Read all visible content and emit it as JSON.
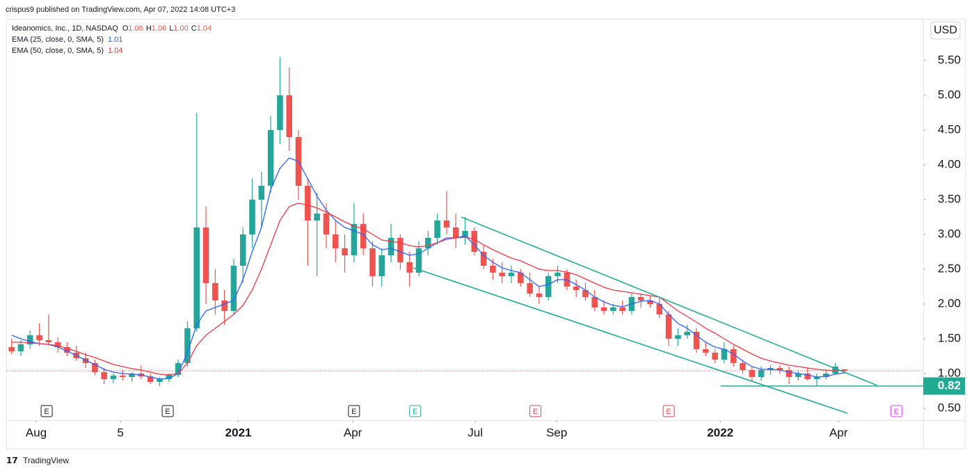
{
  "header": {
    "published": "crispus9 published on TradingView.com, Apr 07, 2022 14:08 UTC+3"
  },
  "footer": {
    "brand": "TradingView"
  },
  "chart_data": {
    "type": "candlestick",
    "title": "Ideanomics, Inc., 1D, NASDAQ",
    "ohlc_legend": [
      {
        "key": "O",
        "value": "1.06"
      },
      {
        "key": "H",
        "value": "1.06"
      },
      {
        "key": "L",
        "value": "1.00"
      },
      {
        "key": "C",
        "value": "1.04"
      }
    ],
    "currency": "USD",
    "up_color": "#26a69a",
    "down_color": "#ef5350",
    "categories": [
      null,
      null,
      null,
      null,
      null,
      null,
      null,
      null,
      null,
      null,
      null,
      null,
      null,
      null,
      null,
      null,
      null,
      null,
      null,
      null,
      null,
      null,
      null,
      null,
      null,
      null,
      null,
      null,
      null,
      null,
      null,
      null,
      null,
      null,
      null,
      null,
      null,
      null,
      null,
      null,
      null,
      null,
      null,
      null,
      null,
      null,
      null,
      null,
      null,
      null,
      null,
      null,
      null,
      null,
      null,
      null,
      null,
      null,
      null,
      null,
      null,
      null,
      null,
      null,
      null,
      null,
      null,
      null,
      null,
      null,
      null,
      null,
      null,
      null,
      null,
      null,
      null,
      null,
      null,
      null,
      null,
      null,
      null,
      null,
      null,
      null,
      null,
      null,
      null,
      null,
      null
    ],
    "open": [
      1.38,
      1.32,
      1.42,
      1.55,
      1.48,
      1.45,
      1.38,
      1.3,
      1.22,
      1.15,
      1.02,
      0.92,
      0.97,
      0.95,
      1.0,
      0.96,
      0.88,
      0.92,
      0.98,
      1.15,
      1.65,
      3.1,
      2.3,
      2.05,
      1.9,
      2.55,
      3.0,
      3.5,
      3.7,
      4.5,
      5.0,
      4.4,
      3.7,
      3.2,
      3.3,
      3.0,
      2.8,
      2.7,
      3.15,
      2.8,
      2.4,
      2.7,
      2.95,
      2.6,
      2.45,
      2.8,
      2.95,
      3.2,
      3.1,
      2.95,
      3.05,
      2.75,
      2.55,
      2.45,
      2.4,
      2.45,
      2.3,
      2.15,
      2.1,
      2.4,
      2.45,
      2.25,
      2.2,
      2.1,
      1.95,
      1.9,
      1.95,
      1.9,
      2.1,
      2.05,
      2.0,
      1.85,
      1.5,
      1.55,
      1.6,
      1.35,
      1.3,
      1.2,
      1.35,
      1.15,
      1.05,
      0.95,
      1.05,
      1.08,
      1.05,
      0.95,
      1.0,
      0.92,
      0.95,
      1.0,
      1.06
    ],
    "high": [
      1.5,
      1.48,
      1.62,
      1.72,
      1.85,
      1.52,
      1.45,
      1.4,
      1.3,
      1.2,
      1.08,
      1.0,
      1.05,
      1.02,
      1.12,
      1.0,
      0.95,
      1.0,
      1.2,
      1.75,
      4.75,
      3.4,
      2.5,
      2.2,
      2.65,
      3.1,
      3.8,
      3.9,
      4.7,
      5.55,
      5.4,
      4.5,
      3.8,
      3.6,
      3.45,
      3.2,
      3.0,
      3.45,
      3.3,
      2.9,
      2.8,
      3.15,
      3.0,
      2.75,
      2.9,
      3.05,
      3.3,
      3.62,
      3.3,
      3.25,
      3.1,
      2.85,
      2.65,
      2.6,
      2.55,
      2.5,
      2.45,
      2.25,
      2.45,
      2.55,
      2.5,
      2.35,
      2.3,
      2.2,
      2.05,
      2.0,
      2.05,
      2.15,
      2.15,
      2.12,
      2.1,
      1.9,
      1.65,
      1.7,
      1.65,
      1.45,
      1.35,
      1.45,
      1.4,
      1.2,
      1.1,
      1.1,
      1.12,
      1.12,
      1.1,
      1.05,
      1.08,
      1.0,
      1.05,
      1.15,
      1.06
    ],
    "low": [
      1.28,
      1.25,
      1.36,
      1.4,
      1.4,
      1.3,
      1.25,
      1.18,
      1.08,
      0.98,
      0.85,
      0.86,
      0.9,
      0.88,
      0.92,
      0.85,
      0.82,
      0.88,
      0.95,
      1.1,
      1.6,
      2.0,
      1.85,
      1.7,
      1.85,
      2.3,
      2.8,
      3.1,
      3.6,
      4.3,
      4.2,
      3.5,
      2.55,
      2.4,
      2.8,
      2.6,
      2.45,
      2.6,
      2.7,
      2.25,
      2.25,
      2.6,
      2.5,
      2.25,
      2.4,
      2.7,
      2.85,
      3.0,
      2.8,
      2.85,
      2.7,
      2.5,
      2.35,
      2.3,
      2.3,
      2.25,
      2.1,
      2.0,
      2.05,
      2.3,
      2.2,
      2.1,
      2.05,
      1.9,
      1.85,
      1.85,
      1.85,
      1.85,
      1.95,
      1.95,
      1.8,
      1.4,
      1.4,
      1.5,
      1.3,
      1.25,
      1.15,
      1.15,
      1.1,
      1.0,
      0.9,
      0.9,
      0.98,
      1.0,
      0.85,
      0.9,
      0.9,
      0.82,
      0.92,
      0.98,
      1.0
    ],
    "close": [
      1.32,
      1.42,
      1.55,
      1.48,
      1.45,
      1.38,
      1.3,
      1.22,
      1.15,
      1.02,
      0.92,
      0.97,
      0.95,
      1.0,
      0.96,
      0.88,
      0.92,
      0.98,
      1.15,
      1.65,
      3.1,
      2.3,
      2.05,
      1.9,
      2.55,
      3.0,
      3.5,
      3.7,
      4.5,
      5.0,
      4.4,
      3.7,
      3.2,
      3.3,
      3.0,
      2.8,
      2.7,
      3.15,
      2.8,
      2.4,
      2.7,
      2.95,
      2.6,
      2.45,
      2.8,
      2.95,
      3.2,
      3.1,
      2.95,
      3.05,
      2.75,
      2.55,
      2.45,
      2.4,
      2.45,
      2.3,
      2.15,
      2.1,
      2.4,
      2.45,
      2.25,
      2.2,
      2.1,
      1.95,
      1.9,
      1.95,
      1.9,
      2.1,
      2.05,
      2.0,
      1.85,
      1.5,
      1.55,
      1.6,
      1.35,
      1.3,
      1.2,
      1.35,
      1.15,
      1.05,
      0.95,
      1.05,
      1.08,
      1.05,
      0.95,
      1.0,
      0.92,
      0.95,
      1.0,
      1.1,
      1.04
    ],
    "series": [
      {
        "name": "EMA (25, close, 0, SMA, 5)",
        "value_label": "1.01",
        "color": "#2962ff",
        "values": [
          1.55,
          1.5,
          1.46,
          1.43,
          1.42,
          1.38,
          1.32,
          1.26,
          1.19,
          1.13,
          1.06,
          1.02,
          1.0,
          0.99,
          0.98,
          0.95,
          0.92,
          0.93,
          1.0,
          1.3,
          1.7,
          1.9,
          1.95,
          2.0,
          2.05,
          2.35,
          2.75,
          3.1,
          3.65,
          3.95,
          4.1,
          4.05,
          3.8,
          3.55,
          3.35,
          3.2,
          3.1,
          3.05,
          3.0,
          2.85,
          2.78,
          2.8,
          2.75,
          2.7,
          2.72,
          2.8,
          2.88,
          2.95,
          2.95,
          2.98,
          2.85,
          2.7,
          2.6,
          2.52,
          2.48,
          2.45,
          2.35,
          2.25,
          2.28,
          2.35,
          2.35,
          2.28,
          2.2,
          2.1,
          2.03,
          1.98,
          1.96,
          2.0,
          2.04,
          2.05,
          2.0,
          1.85,
          1.72,
          1.65,
          1.55,
          1.45,
          1.38,
          1.35,
          1.28,
          1.18,
          1.1,
          1.06,
          1.06,
          1.05,
          1.02,
          1.0,
          0.98,
          0.95,
          0.96,
          0.99,
          1.01
        ]
      },
      {
        "name": "EMA (50, close, 0, SMA, 5)",
        "value_label": "1.04",
        "color": "#f23645",
        "values": [
          1.45,
          1.45,
          1.44,
          1.43,
          1.42,
          1.4,
          1.36,
          1.32,
          1.27,
          1.23,
          1.18,
          1.13,
          1.1,
          1.07,
          1.05,
          1.02,
          0.99,
          0.98,
          1.0,
          1.15,
          1.4,
          1.55,
          1.65,
          1.75,
          1.85,
          1.98,
          2.2,
          2.5,
          2.85,
          3.2,
          3.4,
          3.45,
          3.42,
          3.38,
          3.32,
          3.25,
          3.18,
          3.12,
          3.08,
          3.0,
          2.92,
          2.9,
          2.88,
          2.84,
          2.82,
          2.84,
          2.88,
          2.93,
          2.95,
          2.96,
          2.93,
          2.85,
          2.78,
          2.72,
          2.66,
          2.62,
          2.56,
          2.5,
          2.48,
          2.48,
          2.46,
          2.42,
          2.36,
          2.3,
          2.24,
          2.2,
          2.18,
          2.16,
          2.14,
          2.12,
          2.1,
          2.0,
          1.9,
          1.82,
          1.74,
          1.65,
          1.58,
          1.5,
          1.42,
          1.35,
          1.28,
          1.22,
          1.18,
          1.15,
          1.12,
          1.1,
          1.08,
          1.06,
          1.05,
          1.04,
          1.04
        ]
      }
    ],
    "xlim": [
      -0.5,
      98.5
    ],
    "xticks": [
      {
        "value": 2.66,
        "label": "Aug"
      },
      {
        "value": 11.76,
        "label": "5"
      },
      {
        "value": 24.5,
        "label": "2021"
      },
      {
        "value": 36.87,
        "label": "Apr"
      },
      {
        "value": 50.1,
        "label": "Jul"
      },
      {
        "value": 58.9,
        "label": "Sep"
      },
      {
        "value": 76.57,
        "label": "2022"
      },
      {
        "value": 89.35,
        "label": "Apr"
      }
    ],
    "ylim": [
      0.33,
      6.09
    ],
    "yticks": [
      {
        "value": 0.5,
        "label": "0.50"
      },
      {
        "value": 1,
        "label": "1.00"
      },
      {
        "value": 1.5,
        "label": "1.50"
      },
      {
        "value": 2,
        "label": "2.00"
      },
      {
        "value": 2.5,
        "label": "2.50"
      },
      {
        "value": 3,
        "label": "3.00"
      },
      {
        "value": 3.5,
        "label": "3.50"
      },
      {
        "value": 4,
        "label": "4.00"
      },
      {
        "value": 4.5,
        "label": "4.50"
      },
      {
        "value": 5,
        "label": "5.00"
      },
      {
        "value": 5.5,
        "label": "5.50"
      }
    ],
    "trend_lines": [
      {
        "color": "#22ab94",
        "points": [
          [
            48.6,
            3.25
          ],
          [
            93.5,
            0.83
          ]
        ]
      },
      {
        "color": "#22ab94",
        "points": [
          [
            43.4,
            2.52
          ],
          [
            90.3,
            0.43
          ]
        ]
      }
    ],
    "horizontal_line": {
      "value": 0.82,
      "label": "0.82",
      "x_start": 76.6,
      "color": "#22ab94"
    },
    "events": [
      {
        "x": 3.79,
        "label": "E",
        "color": "#131722"
      },
      {
        "x": 16.87,
        "label": "E",
        "color": "#131722"
      },
      {
        "x": 37.0,
        "label": "E",
        "color": "#131722"
      },
      {
        "x": 43.6,
        "label": "E",
        "color": "#22ab94"
      },
      {
        "x": 56.6,
        "label": "E",
        "color": "#f23645"
      },
      {
        "x": 71.0,
        "label": "E",
        "color": "#f23645"
      },
      {
        "x": 95.6,
        "label": "E",
        "color": "#e040fb"
      }
    ]
  }
}
